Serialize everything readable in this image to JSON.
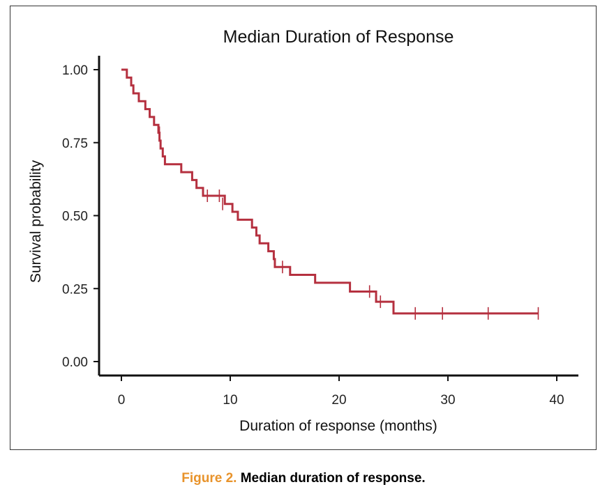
{
  "chart_data": {
    "type": "line",
    "title": "Median Duration of Response",
    "xlabel": "Duration of response (months)",
    "ylabel": "Survival probability",
    "xlim": [
      -2,
      42
    ],
    "ylim": [
      -0.05,
      1.05
    ],
    "x_ticks": [
      0,
      10,
      20,
      30,
      40
    ],
    "y_ticks": [
      0.0,
      0.25,
      0.5,
      0.75,
      1.0
    ],
    "x_tick_labels": [
      "0",
      "10",
      "20",
      "30",
      "40"
    ],
    "y_tick_labels": [
      "0.00",
      "0.25",
      "0.50",
      "0.75",
      "1.00"
    ],
    "grid": false,
    "series": [
      {
        "color": "#b5303f",
        "steps": [
          [
            0,
            1.0
          ],
          [
            0.5,
            0.973
          ],
          [
            0.9,
            0.946
          ],
          [
            1.1,
            0.919
          ],
          [
            1.6,
            0.892
          ],
          [
            2.2,
            0.865
          ],
          [
            2.6,
            0.838
          ],
          [
            3.0,
            0.811
          ],
          [
            3.4,
            0.784
          ],
          [
            3.5,
            0.757
          ],
          [
            3.6,
            0.73
          ],
          [
            3.8,
            0.703
          ],
          [
            4.0,
            0.676
          ],
          [
            5.5,
            0.649
          ],
          [
            6.5,
            0.622
          ],
          [
            6.9,
            0.595
          ],
          [
            7.5,
            0.568
          ],
          [
            9.5,
            0.54
          ],
          [
            10.2,
            0.513
          ],
          [
            10.7,
            0.486
          ],
          [
            12.0,
            0.459
          ],
          [
            12.4,
            0.432
          ],
          [
            12.7,
            0.405
          ],
          [
            13.5,
            0.378
          ],
          [
            14.0,
            0.351
          ],
          [
            14.1,
            0.324
          ],
          [
            15.5,
            0.297
          ],
          [
            17.8,
            0.27
          ],
          [
            21.0,
            0.24
          ],
          [
            23.4,
            0.205
          ],
          [
            25.0,
            0.165
          ],
          [
            38.3,
            0.165
          ]
        ],
        "censored": [
          [
            3.5,
            0.784
          ],
          [
            7.9,
            0.568
          ],
          [
            9.0,
            0.568
          ],
          [
            9.3,
            0.54
          ],
          [
            14.8,
            0.324
          ],
          [
            22.8,
            0.24
          ],
          [
            23.8,
            0.205
          ],
          [
            27.0,
            0.165
          ],
          [
            29.5,
            0.165
          ],
          [
            33.7,
            0.165
          ],
          [
            38.3,
            0.165
          ]
        ]
      }
    ]
  },
  "caption": {
    "label": "Figure 2.",
    "text": "Median duration of response."
  }
}
